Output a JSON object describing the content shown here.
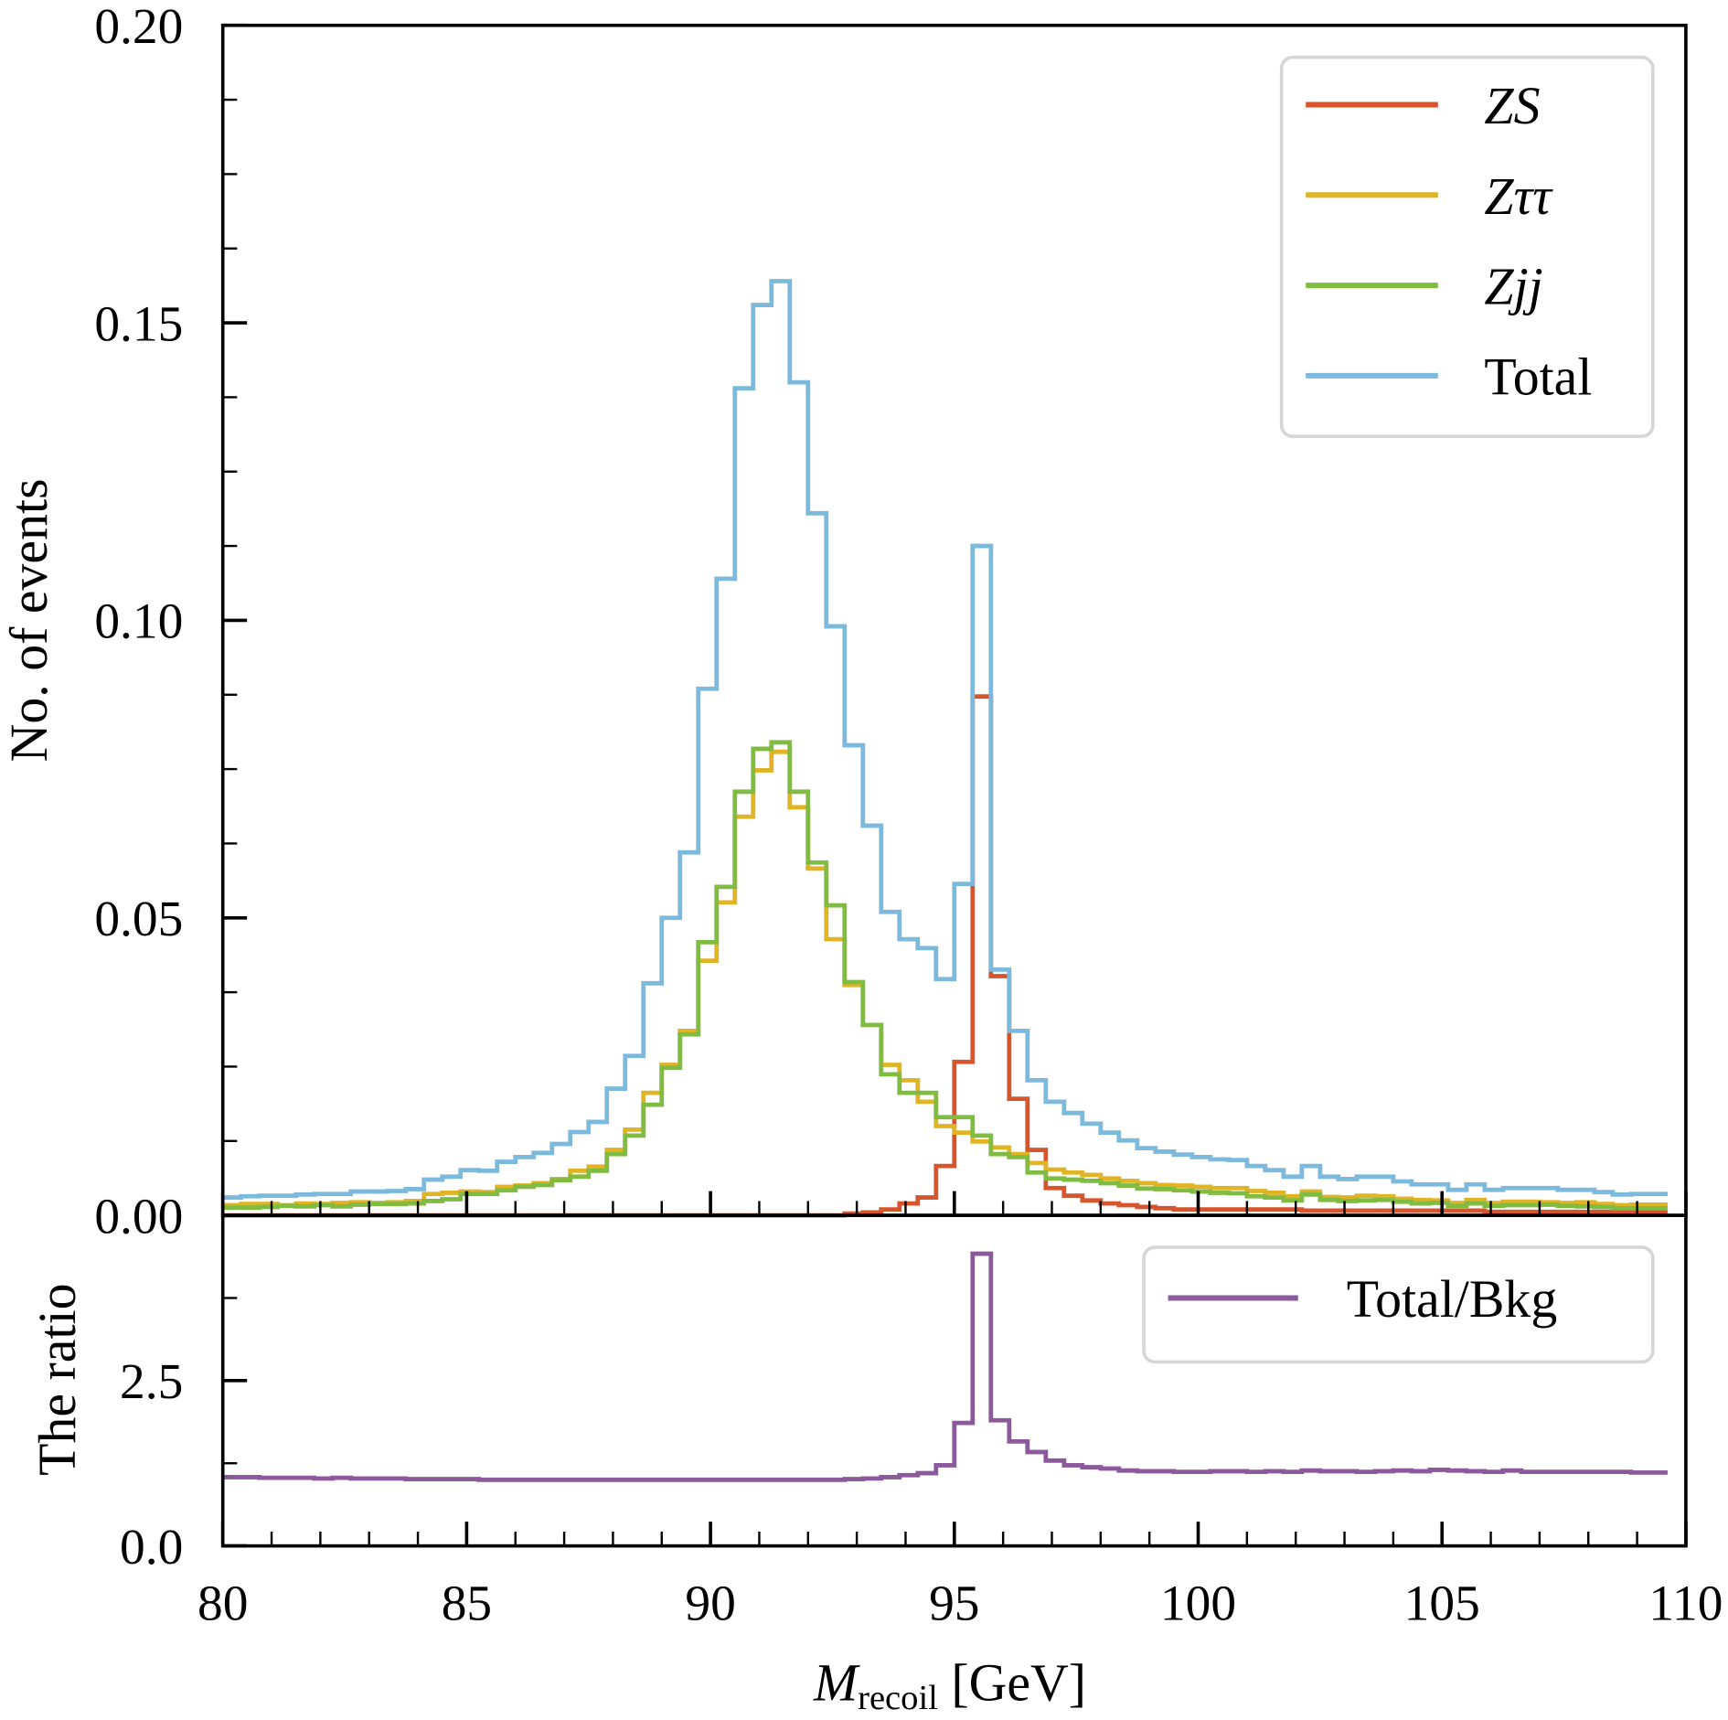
{
  "chart_data": [
    {
      "type": "step-histogram",
      "panel": "main",
      "xlabel_main": "M",
      "xlabel_sub": "recoil",
      "xlabel_unit": "[GeV]",
      "ylabel": "No. of events",
      "xlim": [
        80,
        110
      ],
      "ylim": [
        0,
        0.2
      ],
      "x_ticks": [
        "80",
        "85",
        "90",
        "95",
        "100",
        "105",
        "110"
      ],
      "y_ticks": [
        "0.00",
        "0.05",
        "0.10",
        "0.15",
        "0.20"
      ],
      "bin_start": 80,
      "bin_width": 0.375,
      "legend_position": "top-right",
      "series": [
        {
          "name": "ZS",
          "color": "#d6552d",
          "values": [
            0,
            0,
            0,
            0,
            0,
            0,
            0,
            0,
            0,
            0,
            0,
            0,
            0,
            0,
            0,
            0,
            0,
            0,
            0,
            0,
            0,
            0,
            0,
            0,
            0,
            0,
            0,
            0,
            0,
            0,
            0,
            0,
            0,
            0,
            0.0003,
            0.0005,
            0.001,
            0.002,
            0.003,
            0.0083,
            0.0258,
            0.0872,
            0.0402,
            0.0196,
            0.011,
            0.0046,
            0.0033,
            0.0025,
            0.002,
            0.0017,
            0.0014,
            0.0012,
            0.001,
            0.001,
            0.001,
            0.001,
            0.001,
            0.001,
            0.001,
            0.0008,
            0.0008,
            0.0008,
            0.0008,
            0.0008,
            0.0008,
            0.0008,
            0.0008,
            0.0008,
            0.0008,
            0.0006,
            0.0006,
            0.0006,
            0.0006,
            0.0006,
            0.0006,
            0.0006,
            0.0006,
            0.0006,
            0.0006
          ]
        },
        {
          "name": "Zττ",
          "color": "#e0b424",
          "values": [
            0.0017,
            0.0019,
            0.0019,
            0.0017,
            0.002,
            0.0019,
            0.0021,
            0.0022,
            0.0021,
            0.0022,
            0.0024,
            0.0036,
            0.0038,
            0.004,
            0.0039,
            0.0048,
            0.005,
            0.0054,
            0.0061,
            0.0075,
            0.0082,
            0.011,
            0.0144,
            0.0206,
            0.0253,
            0.031,
            0.0428,
            0.0526,
            0.067,
            0.0748,
            0.0779,
            0.0686,
            0.0583,
            0.0464,
            0.0387,
            0.032,
            0.0253,
            0.0227,
            0.0191,
            0.015,
            0.0139,
            0.0124,
            0.0114,
            0.0103,
            0.0088,
            0.0077,
            0.0072,
            0.0068,
            0.0062,
            0.0058,
            0.0054,
            0.0051,
            0.005,
            0.0048,
            0.0046,
            0.0046,
            0.0041,
            0.0038,
            0.0032,
            0.004,
            0.0031,
            0.003,
            0.0033,
            0.0032,
            0.0028,
            0.0026,
            0.0025,
            0.0021,
            0.0026,
            0.0021,
            0.0023,
            0.0023,
            0.0022,
            0.0021,
            0.0022,
            0.0019,
            0.0017,
            0.0018,
            0.0018
          ]
        },
        {
          "name": "Zjj",
          "color": "#80bc42",
          "values": [
            0.0013,
            0.0013,
            0.0014,
            0.0016,
            0.0015,
            0.0017,
            0.0015,
            0.0018,
            0.0019,
            0.0019,
            0.002,
            0.0024,
            0.0027,
            0.0036,
            0.0036,
            0.0042,
            0.0048,
            0.0051,
            0.0059,
            0.0065,
            0.0075,
            0.0103,
            0.0134,
            0.0186,
            0.0248,
            0.0304,
            0.0459,
            0.0552,
            0.0712,
            0.0784,
            0.0795,
            0.0712,
            0.0593,
            0.0521,
            0.0392,
            0.032,
            0.0237,
            0.0206,
            0.0206,
            0.0165,
            0.0165,
            0.0134,
            0.0103,
            0.0098,
            0.0072,
            0.0062,
            0.006,
            0.0058,
            0.0054,
            0.005,
            0.0045,
            0.0044,
            0.0042,
            0.004,
            0.0038,
            0.0037,
            0.0032,
            0.003,
            0.0025,
            0.0035,
            0.0026,
            0.0024,
            0.0025,
            0.0026,
            0.0023,
            0.002,
            0.0021,
            0.0016,
            0.002,
            0.0016,
            0.0017,
            0.0017,
            0.0018,
            0.0016,
            0.0015,
            0.0014,
            0.0012,
            0.0012,
            0.0012
          ]
        },
        {
          "name": "Total",
          "color": "#7bbadd",
          "values": [
            0.003,
            0.0032,
            0.0033,
            0.0033,
            0.0035,
            0.0036,
            0.0036,
            0.004,
            0.004,
            0.0041,
            0.0044,
            0.006,
            0.0065,
            0.0076,
            0.0075,
            0.009,
            0.0098,
            0.0105,
            0.012,
            0.014,
            0.0157,
            0.0213,
            0.0268,
            0.039,
            0.05,
            0.061,
            0.0885,
            0.107,
            0.139,
            0.153,
            0.157,
            0.14,
            0.118,
            0.099,
            0.079,
            0.0655,
            0.051,
            0.0464,
            0.0449,
            0.0397,
            0.0557,
            0.1125,
            0.0413,
            0.031,
            0.0227,
            0.0191,
            0.0172,
            0.0154,
            0.0139,
            0.0126,
            0.0113,
            0.0107,
            0.0102,
            0.0098,
            0.0094,
            0.0093,
            0.0083,
            0.0076,
            0.0065,
            0.0083,
            0.0065,
            0.0061,
            0.0065,
            0.0065,
            0.0057,
            0.0052,
            0.0052,
            0.0043,
            0.0052,
            0.0043,
            0.0046,
            0.0046,
            0.0046,
            0.0043,
            0.0043,
            0.0039,
            0.0035,
            0.0036,
            0.0036
          ]
        }
      ]
    },
    {
      "type": "step-histogram",
      "panel": "ratio",
      "ylabel": "The ratio",
      "xlim": [
        80,
        110
      ],
      "ylim": [
        0,
        5
      ],
      "y_ticks": [
        "0.0",
        "2.5"
      ],
      "legend_position": "top-right",
      "series": [
        {
          "name": "Total/Bkg",
          "color": "#8c5a9c",
          "values": [
            1.04,
            1.04,
            1.03,
            1.03,
            1.03,
            1.02,
            1.03,
            1.02,
            1.02,
            1.02,
            1.01,
            1.01,
            1.01,
            1.01,
            1.0,
            1.0,
            1.0,
            1.0,
            1.0,
            1.0,
            1.0,
            1.0,
            1.0,
            1.0,
            1.0,
            1.0,
            1.0,
            1.0,
            1.0,
            1.0,
            1.0,
            1.0,
            1.0,
            1.0,
            1.01,
            1.02,
            1.04,
            1.07,
            1.1,
            1.22,
            1.86,
            4.42,
            1.9,
            1.58,
            1.42,
            1.29,
            1.22,
            1.19,
            1.17,
            1.14,
            1.13,
            1.13,
            1.12,
            1.12,
            1.13,
            1.13,
            1.12,
            1.13,
            1.12,
            1.14,
            1.13,
            1.13,
            1.12,
            1.13,
            1.14,
            1.13,
            1.15,
            1.14,
            1.13,
            1.12,
            1.14,
            1.12,
            1.12,
            1.12,
            1.12,
            1.12,
            1.12,
            1.11,
            1.11
          ]
        }
      ]
    }
  ]
}
